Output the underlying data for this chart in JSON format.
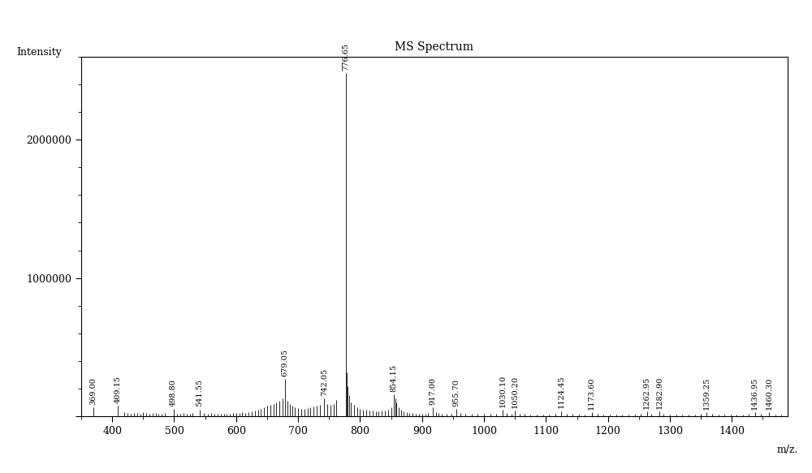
{
  "title": "MS Spectrum",
  "xlabel": "m/z.",
  "ylabel": "Intensity",
  "xlim": [
    350,
    1490
  ],
  "ylim": [
    0,
    2600000
  ],
  "background_color": "#ffffff",
  "peaks": [
    {
      "mz": 369.0,
      "intensity": 65000,
      "label": "369.00"
    },
    {
      "mz": 409.15,
      "intensity": 75000,
      "label": "409.15"
    },
    {
      "mz": 420.0,
      "intensity": 30000,
      "label": ""
    },
    {
      "mz": 425.0,
      "intensity": 22000,
      "label": ""
    },
    {
      "mz": 430.0,
      "intensity": 18000,
      "label": ""
    },
    {
      "mz": 435.0,
      "intensity": 22000,
      "label": ""
    },
    {
      "mz": 440.0,
      "intensity": 25000,
      "label": ""
    },
    {
      "mz": 445.0,
      "intensity": 20000,
      "label": ""
    },
    {
      "mz": 450.0,
      "intensity": 28000,
      "label": ""
    },
    {
      "mz": 455.0,
      "intensity": 22000,
      "label": ""
    },
    {
      "mz": 460.0,
      "intensity": 18000,
      "label": ""
    },
    {
      "mz": 465.0,
      "intensity": 22000,
      "label": ""
    },
    {
      "mz": 470.0,
      "intensity": 25000,
      "label": ""
    },
    {
      "mz": 475.0,
      "intensity": 20000,
      "label": ""
    },
    {
      "mz": 480.0,
      "intensity": 18000,
      "label": ""
    },
    {
      "mz": 485.0,
      "intensity": 22000,
      "label": ""
    },
    {
      "mz": 498.8,
      "intensity": 55000,
      "label": "498.80"
    },
    {
      "mz": 505.0,
      "intensity": 20000,
      "label": ""
    },
    {
      "mz": 510.0,
      "intensity": 18000,
      "label": ""
    },
    {
      "mz": 515.0,
      "intensity": 22000,
      "label": ""
    },
    {
      "mz": 520.0,
      "intensity": 18000,
      "label": ""
    },
    {
      "mz": 525.0,
      "intensity": 20000,
      "label": ""
    },
    {
      "mz": 530.0,
      "intensity": 22000,
      "label": ""
    },
    {
      "mz": 541.55,
      "intensity": 50000,
      "label": "541.55"
    },
    {
      "mz": 548.0,
      "intensity": 22000,
      "label": ""
    },
    {
      "mz": 555.0,
      "intensity": 18000,
      "label": ""
    },
    {
      "mz": 560.0,
      "intensity": 22000,
      "label": ""
    },
    {
      "mz": 565.0,
      "intensity": 18000,
      "label": ""
    },
    {
      "mz": 570.0,
      "intensity": 20000,
      "label": ""
    },
    {
      "mz": 575.0,
      "intensity": 18000,
      "label": ""
    },
    {
      "mz": 580.0,
      "intensity": 20000,
      "label": ""
    },
    {
      "mz": 585.0,
      "intensity": 18000,
      "label": ""
    },
    {
      "mz": 590.0,
      "intensity": 20000,
      "label": ""
    },
    {
      "mz": 595.0,
      "intensity": 22000,
      "label": ""
    },
    {
      "mz": 600.0,
      "intensity": 25000,
      "label": ""
    },
    {
      "mz": 605.0,
      "intensity": 22000,
      "label": ""
    },
    {
      "mz": 610.0,
      "intensity": 28000,
      "label": ""
    },
    {
      "mz": 615.0,
      "intensity": 25000,
      "label": ""
    },
    {
      "mz": 620.0,
      "intensity": 30000,
      "label": ""
    },
    {
      "mz": 625.0,
      "intensity": 35000,
      "label": ""
    },
    {
      "mz": 630.0,
      "intensity": 40000,
      "label": ""
    },
    {
      "mz": 635.0,
      "intensity": 45000,
      "label": ""
    },
    {
      "mz": 640.0,
      "intensity": 55000,
      "label": ""
    },
    {
      "mz": 645.0,
      "intensity": 65000,
      "label": ""
    },
    {
      "mz": 650.0,
      "intensity": 75000,
      "label": ""
    },
    {
      "mz": 655.0,
      "intensity": 80000,
      "label": ""
    },
    {
      "mz": 660.0,
      "intensity": 90000,
      "label": ""
    },
    {
      "mz": 665.0,
      "intensity": 100000,
      "label": ""
    },
    {
      "mz": 670.0,
      "intensity": 110000,
      "label": ""
    },
    {
      "mz": 675.0,
      "intensity": 130000,
      "label": ""
    },
    {
      "mz": 679.05,
      "intensity": 270000,
      "label": "679.05"
    },
    {
      "mz": 683.0,
      "intensity": 110000,
      "label": ""
    },
    {
      "mz": 687.0,
      "intensity": 90000,
      "label": ""
    },
    {
      "mz": 691.0,
      "intensity": 75000,
      "label": ""
    },
    {
      "mz": 695.0,
      "intensity": 65000,
      "label": ""
    },
    {
      "mz": 700.0,
      "intensity": 60000,
      "label": ""
    },
    {
      "mz": 705.0,
      "intensity": 55000,
      "label": ""
    },
    {
      "mz": 710.0,
      "intensity": 55000,
      "label": ""
    },
    {
      "mz": 715.0,
      "intensity": 60000,
      "label": ""
    },
    {
      "mz": 720.0,
      "intensity": 65000,
      "label": ""
    },
    {
      "mz": 725.0,
      "intensity": 70000,
      "label": ""
    },
    {
      "mz": 730.0,
      "intensity": 75000,
      "label": ""
    },
    {
      "mz": 735.0,
      "intensity": 80000,
      "label": ""
    },
    {
      "mz": 742.05,
      "intensity": 130000,
      "label": "742.05"
    },
    {
      "mz": 747.0,
      "intensity": 90000,
      "label": ""
    },
    {
      "mz": 752.0,
      "intensity": 80000,
      "label": ""
    },
    {
      "mz": 757.0,
      "intensity": 90000,
      "label": ""
    },
    {
      "mz": 762.0,
      "intensity": 120000,
      "label": ""
    },
    {
      "mz": 776.65,
      "intensity": 2480000,
      "label": "776.65"
    },
    {
      "mz": 778.5,
      "intensity": 320000,
      "label": ""
    },
    {
      "mz": 780.0,
      "intensity": 220000,
      "label": ""
    },
    {
      "mz": 782.0,
      "intensity": 150000,
      "label": ""
    },
    {
      "mz": 785.0,
      "intensity": 100000,
      "label": ""
    },
    {
      "mz": 790.0,
      "intensity": 80000,
      "label": ""
    },
    {
      "mz": 795.0,
      "intensity": 65000,
      "label": ""
    },
    {
      "mz": 800.0,
      "intensity": 55000,
      "label": ""
    },
    {
      "mz": 805.0,
      "intensity": 50000,
      "label": ""
    },
    {
      "mz": 810.0,
      "intensity": 45000,
      "label": ""
    },
    {
      "mz": 815.0,
      "intensity": 42000,
      "label": ""
    },
    {
      "mz": 820.0,
      "intensity": 40000,
      "label": ""
    },
    {
      "mz": 825.0,
      "intensity": 38000,
      "label": ""
    },
    {
      "mz": 830.0,
      "intensity": 38000,
      "label": ""
    },
    {
      "mz": 835.0,
      "intensity": 40000,
      "label": ""
    },
    {
      "mz": 840.0,
      "intensity": 42000,
      "label": ""
    },
    {
      "mz": 845.0,
      "intensity": 50000,
      "label": ""
    },
    {
      "mz": 850.0,
      "intensity": 65000,
      "label": ""
    },
    {
      "mz": 854.15,
      "intensity": 160000,
      "label": "854.15"
    },
    {
      "mz": 856.5,
      "intensity": 130000,
      "label": ""
    },
    {
      "mz": 858.5,
      "intensity": 100000,
      "label": ""
    },
    {
      "mz": 862.0,
      "intensity": 65000,
      "label": ""
    },
    {
      "mz": 866.0,
      "intensity": 45000,
      "label": ""
    },
    {
      "mz": 870.0,
      "intensity": 35000,
      "label": ""
    },
    {
      "mz": 875.0,
      "intensity": 28000,
      "label": ""
    },
    {
      "mz": 880.0,
      "intensity": 25000,
      "label": ""
    },
    {
      "mz": 885.0,
      "intensity": 22000,
      "label": ""
    },
    {
      "mz": 890.0,
      "intensity": 20000,
      "label": ""
    },
    {
      "mz": 895.0,
      "intensity": 18000,
      "label": ""
    },
    {
      "mz": 900.0,
      "intensity": 18000,
      "label": ""
    },
    {
      "mz": 905.0,
      "intensity": 20000,
      "label": ""
    },
    {
      "mz": 910.0,
      "intensity": 22000,
      "label": ""
    },
    {
      "mz": 917.0,
      "intensity": 65000,
      "label": "917.00"
    },
    {
      "mz": 922.0,
      "intensity": 28000,
      "label": ""
    },
    {
      "mz": 927.0,
      "intensity": 22000,
      "label": ""
    },
    {
      "mz": 932.0,
      "intensity": 20000,
      "label": ""
    },
    {
      "mz": 940.0,
      "intensity": 18000,
      "label": ""
    },
    {
      "mz": 948.0,
      "intensity": 18000,
      "label": ""
    },
    {
      "mz": 955.7,
      "intensity": 55000,
      "label": "955.70"
    },
    {
      "mz": 962.0,
      "intensity": 22000,
      "label": ""
    },
    {
      "mz": 970.0,
      "intensity": 18000,
      "label": ""
    },
    {
      "mz": 980.0,
      "intensity": 16000,
      "label": ""
    },
    {
      "mz": 990.0,
      "intensity": 15000,
      "label": ""
    },
    {
      "mz": 1000.0,
      "intensity": 15000,
      "label": ""
    },
    {
      "mz": 1010.0,
      "intensity": 15000,
      "label": ""
    },
    {
      "mz": 1020.0,
      "intensity": 18000,
      "label": ""
    },
    {
      "mz": 1030.1,
      "intensity": 45000,
      "label": "1030.10"
    },
    {
      "mz": 1037.0,
      "intensity": 22000,
      "label": ""
    },
    {
      "mz": 1044.0,
      "intensity": 20000,
      "label": ""
    },
    {
      "mz": 1050.2,
      "intensity": 40000,
      "label": "1050.20"
    },
    {
      "mz": 1057.0,
      "intensity": 18000,
      "label": ""
    },
    {
      "mz": 1065.0,
      "intensity": 15000,
      "label": ""
    },
    {
      "mz": 1075.0,
      "intensity": 14000,
      "label": ""
    },
    {
      "mz": 1085.0,
      "intensity": 14000,
      "label": ""
    },
    {
      "mz": 1095.0,
      "intensity": 14000,
      "label": ""
    },
    {
      "mz": 1105.0,
      "intensity": 14000,
      "label": ""
    },
    {
      "mz": 1115.0,
      "intensity": 15000,
      "label": ""
    },
    {
      "mz": 1124.45,
      "intensity": 38000,
      "label": "1124.45"
    },
    {
      "mz": 1133.0,
      "intensity": 16000,
      "label": ""
    },
    {
      "mz": 1143.0,
      "intensity": 15000,
      "label": ""
    },
    {
      "mz": 1153.0,
      "intensity": 14000,
      "label": ""
    },
    {
      "mz": 1163.0,
      "intensity": 14000,
      "label": ""
    },
    {
      "mz": 1173.6,
      "intensity": 30000,
      "label": "1173.60"
    },
    {
      "mz": 1183.0,
      "intensity": 15000,
      "label": ""
    },
    {
      "mz": 1193.0,
      "intensity": 14000,
      "label": ""
    },
    {
      "mz": 1203.0,
      "intensity": 14000,
      "label": ""
    },
    {
      "mz": 1213.0,
      "intensity": 14000,
      "label": ""
    },
    {
      "mz": 1223.0,
      "intensity": 14000,
      "label": ""
    },
    {
      "mz": 1233.0,
      "intensity": 14000,
      "label": ""
    },
    {
      "mz": 1243.0,
      "intensity": 14000,
      "label": ""
    },
    {
      "mz": 1253.0,
      "intensity": 15000,
      "label": ""
    },
    {
      "mz": 1262.95,
      "intensity": 35000,
      "label": "1262.95"
    },
    {
      "mz": 1270.0,
      "intensity": 18000,
      "label": ""
    },
    {
      "mz": 1282.9,
      "intensity": 33000,
      "label": "1282.90"
    },
    {
      "mz": 1290.0,
      "intensity": 16000,
      "label": ""
    },
    {
      "mz": 1300.0,
      "intensity": 14000,
      "label": ""
    },
    {
      "mz": 1310.0,
      "intensity": 14000,
      "label": ""
    },
    {
      "mz": 1320.0,
      "intensity": 14000,
      "label": ""
    },
    {
      "mz": 1330.0,
      "intensity": 14000,
      "label": ""
    },
    {
      "mz": 1340.0,
      "intensity": 14000,
      "label": ""
    },
    {
      "mz": 1350.0,
      "intensity": 15000,
      "label": ""
    },
    {
      "mz": 1359.25,
      "intensity": 28000,
      "label": "1359.25"
    },
    {
      "mz": 1368.0,
      "intensity": 15000,
      "label": ""
    },
    {
      "mz": 1378.0,
      "intensity": 14000,
      "label": ""
    },
    {
      "mz": 1388.0,
      "intensity": 14000,
      "label": ""
    },
    {
      "mz": 1398.0,
      "intensity": 14000,
      "label": ""
    },
    {
      "mz": 1408.0,
      "intensity": 14000,
      "label": ""
    },
    {
      "mz": 1418.0,
      "intensity": 14000,
      "label": ""
    },
    {
      "mz": 1427.0,
      "intensity": 15000,
      "label": ""
    },
    {
      "mz": 1436.95,
      "intensity": 30000,
      "label": "1436.95"
    },
    {
      "mz": 1447.0,
      "intensity": 16000,
      "label": ""
    },
    {
      "mz": 1460.3,
      "intensity": 28000,
      "label": "1460.30"
    },
    {
      "mz": 1470.0,
      "intensity": 14000,
      "label": ""
    },
    {
      "mz": 1480.0,
      "intensity": 14000,
      "label": ""
    }
  ]
}
